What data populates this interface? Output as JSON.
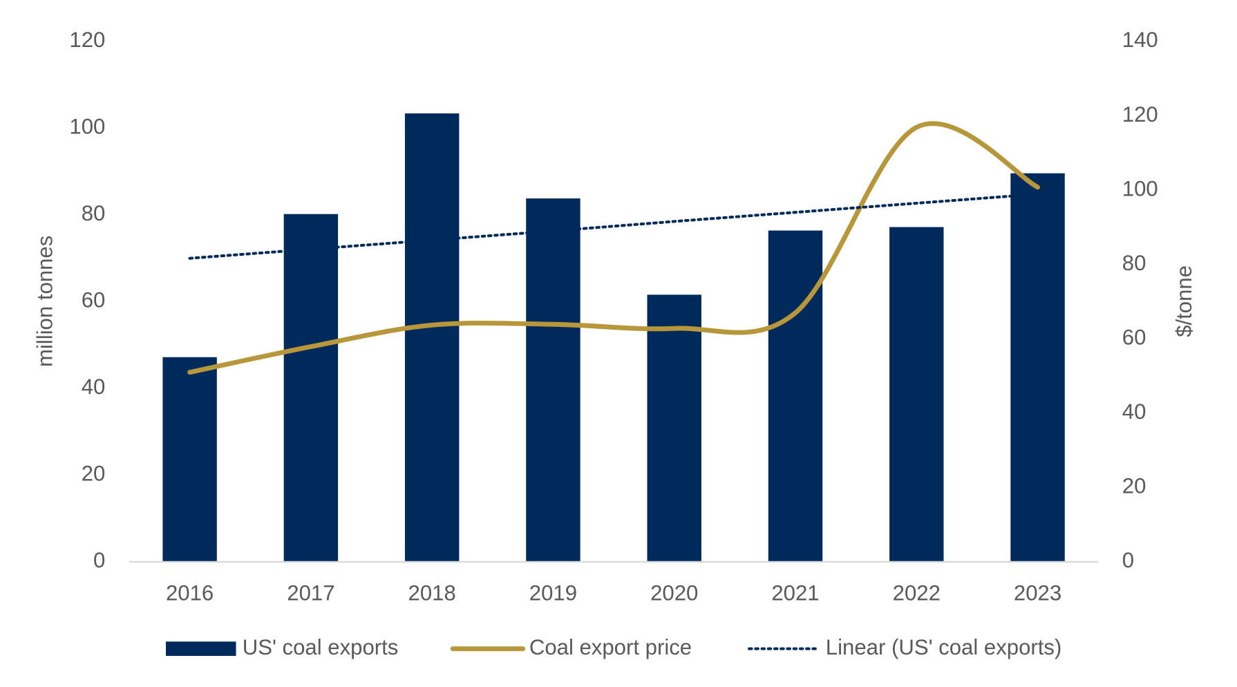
{
  "chart_data": {
    "type": "bar-line",
    "categories": [
      "2016",
      "2017",
      "2018",
      "2019",
      "2020",
      "2021",
      "2022",
      "2023"
    ],
    "series": [
      {
        "name": "US' coal exports",
        "type": "bar",
        "color": "#002a5c",
        "values": [
          47.2,
          80.2,
          103.4,
          83.8,
          61.6,
          76.4,
          77.2,
          89.6
        ]
      },
      {
        "name": "Coal export price",
        "type": "line",
        "axis": "y2",
        "color": "#b8963a",
        "values": [
          51.0,
          57.9,
          63.7,
          63.9,
          62.8,
          67.0,
          116.9,
          100.8
        ]
      },
      {
        "name": "Linear (US' coal exports)",
        "type": "trend",
        "color": "#002a5c",
        "values": [
          70.0,
          72.1,
          74.2,
          76.3,
          78.5,
          80.6,
          82.7,
          84.8
        ]
      }
    ],
    "ylabel": "million tonnes",
    "y2label": "$/tonne",
    "ylim": [
      0,
      120
    ],
    "yticks": [
      0,
      20,
      40,
      60,
      80,
      100,
      120
    ],
    "y2lim": [
      0,
      140
    ],
    "y2ticks": [
      0,
      20,
      40,
      60,
      80,
      100,
      120,
      140
    ],
    "legend": "bottom",
    "grid": false
  }
}
